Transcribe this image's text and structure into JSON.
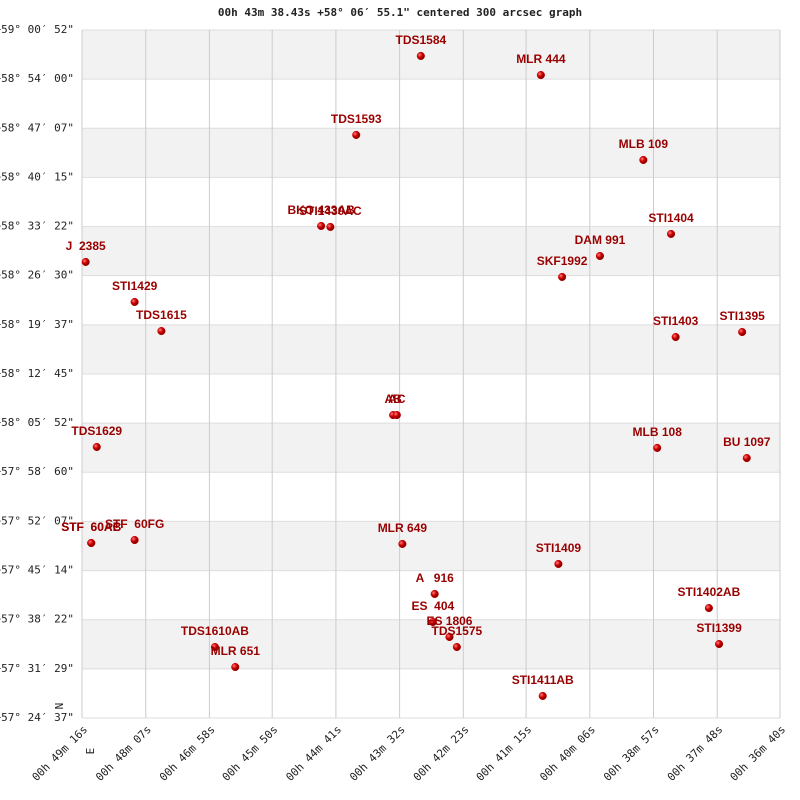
{
  "chart_data": {
    "type": "scatter",
    "title": "00h 43m 38.43s +58° 06′ 55.1\" centered 300 arcsec graph",
    "compass": {
      "north": "N",
      "east": "E"
    },
    "color": "#cc0000",
    "label_color": "#990000",
    "xlim": [
      2956,
      2200
    ],
    "xticks": [
      {
        "value": 2956,
        "label": "00h 49m 16s"
      },
      {
        "value": 2887,
        "label": "00h 48m 07s"
      },
      {
        "value": 2818,
        "label": "00h 46m 58s"
      },
      {
        "value": 2750,
        "label": "00h 45m 50s"
      },
      {
        "value": 2681,
        "label": "00h 44m 41s"
      },
      {
        "value": 2612,
        "label": "00h 43m 32s"
      },
      {
        "value": 2543,
        "label": "00h 42m 23s"
      },
      {
        "value": 2475,
        "label": "00h 41m 15s"
      },
      {
        "value": 2406,
        "label": "00h 40m 06s"
      },
      {
        "value": 2337,
        "label": "00h 38m 57s"
      },
      {
        "value": 2268,
        "label": "00h 37m 48s"
      },
      {
        "value": 2200,
        "label": "00h 36m 40s"
      }
    ],
    "ylim": [
      206677,
      212452
    ],
    "yticks": [
      {
        "value": 212452,
        "label": "+59° 00′ 52\""
      },
      {
        "value": 212040,
        "label": "+58° 54′ 00\""
      },
      {
        "value": 211627,
        "label": "+58° 47′ 07\""
      },
      {
        "value": 211215,
        "label": "+58° 40′ 15\""
      },
      {
        "value": 210802,
        "label": "+58° 33′ 22\""
      },
      {
        "value": 210390,
        "label": "+58° 26′ 30\""
      },
      {
        "value": 209977,
        "label": "+58° 19′ 37\""
      },
      {
        "value": 209565,
        "label": "+58° 12′ 45\""
      },
      {
        "value": 209152,
        "label": "+58° 05′ 52\""
      },
      {
        "value": 208740,
        "label": "+57° 58′ 60\""
      },
      {
        "value": 208327,
        "label": "+57° 52′ 07\""
      },
      {
        "value": 207914,
        "label": "+57° 45′ 14\""
      },
      {
        "value": 207502,
        "label": "+57° 38′ 22\""
      },
      {
        "value": 207089,
        "label": "+57° 31′ 29\""
      },
      {
        "value": 206677,
        "label": "+57° 24′ 37\""
      }
    ],
    "points": [
      {
        "label": "TDS1584",
        "x": 2589,
        "y": 212234
      },
      {
        "label": "MLR 444",
        "x": 2459,
        "y": 212074
      },
      {
        "label": "TDS1593",
        "x": 2659,
        "y": 211571
      },
      {
        "label": "MLB 109",
        "x": 2348,
        "y": 211361
      },
      {
        "label": "BKO 433AB",
        "x": 2697,
        "y": 210807
      },
      {
        "label": "STI1430AC",
        "x": 2687,
        "y": 210799
      },
      {
        "label": "STI1404",
        "x": 2318,
        "y": 210740
      },
      {
        "label": "DAM 991",
        "x": 2395,
        "y": 210555
      },
      {
        "label": "J  2385",
        "x": 2952,
        "y": 210505
      },
      {
        "label": "SKF1992",
        "x": 2436,
        "y": 210379
      },
      {
        "label": "STI1429",
        "x": 2899,
        "y": 210169
      },
      {
        "label": "TDS1615",
        "x": 2870,
        "y": 209925
      },
      {
        "label": "STI1395",
        "x": 2241,
        "y": 209917
      },
      {
        "label": "STI1403",
        "x": 2313,
        "y": 209875
      },
      {
        "label": "AB",
        "x": 2619,
        "y": 209220
      },
      {
        "label": "AC",
        "x": 2615,
        "y": 209220
      },
      {
        "label": "TDS1629",
        "x": 2940,
        "y": 208952
      },
      {
        "label": "MLB 108",
        "x": 2333,
        "y": 208944
      },
      {
        "label": "BU 1097",
        "x": 2236,
        "y": 208859
      },
      {
        "label": "STF  60AB",
        "x": 2946,
        "y": 208146
      },
      {
        "label": "STF  60AC",
        "x": 2946,
        "y": 208146
      },
      {
        "label": "STF  60FG",
        "x": 2899,
        "y": 208171
      },
      {
        "label": "MLR 649",
        "x": 2609,
        "y": 208138
      },
      {
        "label": "STI1409",
        "x": 2440,
        "y": 207970
      },
      {
        "label": "A   916",
        "x": 2574,
        "y": 207718
      },
      {
        "label": "ES  404",
        "x": 2576,
        "y": 207483
      },
      {
        "label": "ES 1806",
        "x": 2558,
        "y": 207357
      },
      {
        "label": "TDS1575",
        "x": 2550,
        "y": 207273
      },
      {
        "label": "STI1402AB",
        "x": 2277,
        "y": 207600
      },
      {
        "label": "STI1399",
        "x": 2266,
        "y": 207298
      },
      {
        "label": "TDS1610AB",
        "x": 2812,
        "y": 207273
      },
      {
        "label": "MLR 651",
        "x": 2790,
        "y": 207105
      },
      {
        "label": "STI1411AB",
        "x": 2457,
        "y": 206862
      }
    ]
  }
}
